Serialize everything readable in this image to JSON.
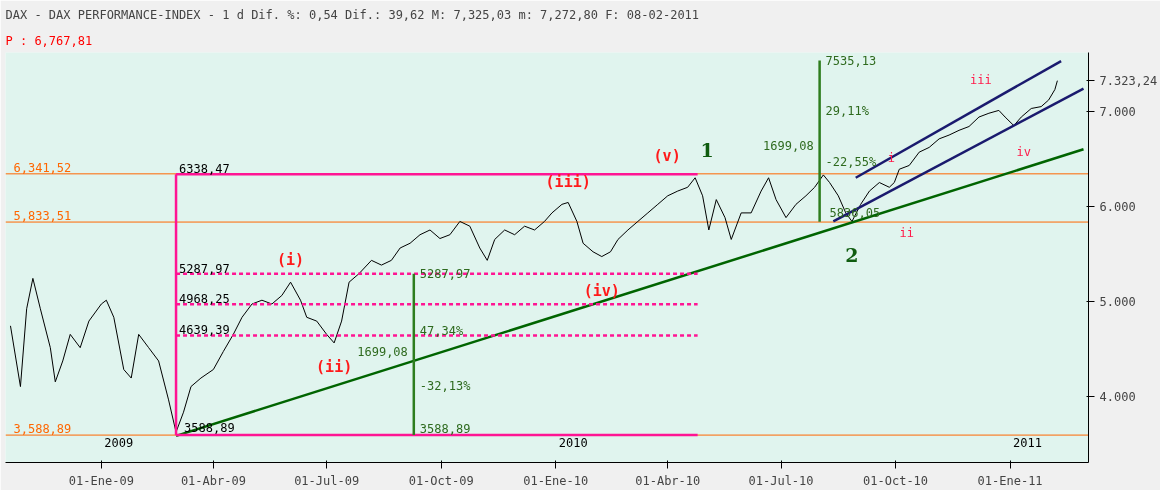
{
  "chart_data": {
    "type": "line",
    "title": "DAX - DAX PERFORMANCE-INDEX -  1 d Dif. %: 0,54 Dif.: 39,62 M: 7,325,03 m: 7,272,80 F: 08-02-2011",
    "subtitle": "P : 6,767,81",
    "xlim": [
      "2008-10-16",
      "2011-03-05"
    ],
    "ylim": [
      3300,
      7620
    ],
    "xticks": [
      {
        "value": "2009-01-01",
        "label": "01-Ene-09"
      },
      {
        "value": "2009-04-01",
        "label": "01-Abr-09"
      },
      {
        "value": "2009-07-01",
        "label": "01-Jul-09"
      },
      {
        "value": "2009-10-01",
        "label": "01-Oct-09"
      },
      {
        "value": "2010-01-01",
        "label": "01-Ene-10"
      },
      {
        "value": "2010-04-01",
        "label": "01-Abr-10"
      },
      {
        "value": "2010-07-01",
        "label": "01-Jul-10"
      },
      {
        "value": "2010-10-01",
        "label": "01-Oct-10"
      },
      {
        "value": "2011-01-01",
        "label": "01-Ene-11"
      }
    ],
    "yticks": [
      {
        "value": 4000,
        "label": "4.000"
      },
      {
        "value": 5000,
        "label": "5.000"
      },
      {
        "value": 6000,
        "label": "6.000"
      },
      {
        "value": 7000,
        "label": "7.000"
      },
      {
        "value": 7323.24,
        "label": "7.323,24"
      }
    ],
    "grid": false,
    "marker": "none",
    "series": [
      {
        "color": "#000000",
        "line_style": "solid",
        "x": [
          "2008-10-20",
          "2008-10-28",
          "2008-11-02",
          "2008-11-07",
          "2008-11-13",
          "2008-11-21",
          "2008-11-25",
          "2008-12-01",
          "2008-12-07",
          "2008-12-15",
          "2008-12-22",
          "2009-01-01",
          "2009-01-05",
          "2009-01-11",
          "2009-01-19",
          "2009-01-25",
          "2009-01-31",
          "2009-02-08",
          "2009-02-16",
          "2009-02-24",
          "2009-03-02",
          "2009-03-08",
          "2009-03-14",
          "2009-03-22",
          "2009-04-01",
          "2009-04-09",
          "2009-04-17",
          "2009-04-24",
          "2009-05-02",
          "2009-05-10",
          "2009-05-18",
          "2009-05-26",
          "2009-06-02",
          "2009-06-10",
          "2009-06-15",
          "2009-06-23",
          "2009-07-01",
          "2009-07-07",
          "2009-07-13",
          "2009-07-19",
          "2009-07-27",
          "2009-08-06",
          "2009-08-14",
          "2009-08-22",
          "2009-08-29",
          "2009-09-06",
          "2009-09-14",
          "2009-09-22",
          "2009-09-30",
          "2009-10-08",
          "2009-10-16",
          "2009-10-24",
          "2009-11-01",
          "2009-11-07",
          "2009-11-13",
          "2009-11-21",
          "2009-11-29",
          "2009-12-07",
          "2009-12-15",
          "2009-12-23",
          "2009-12-29",
          "2010-01-06",
          "2010-01-11",
          "2010-01-18",
          "2010-01-23",
          "2010-01-31",
          "2010-02-07",
          "2010-02-14",
          "2010-02-20",
          "2010-02-28",
          "2010-03-08",
          "2010-03-16",
          "2010-03-24",
          "2010-04-01",
          "2010-04-09",
          "2010-04-17",
          "2010-04-23",
          "2010-04-29",
          "2010-05-04",
          "2010-05-10",
          "2010-05-17",
          "2010-05-22",
          "2010-05-30",
          "2010-06-07",
          "2010-06-15",
          "2010-06-21",
          "2010-06-27",
          "2010-07-05",
          "2010-07-13",
          "2010-07-21",
          "2010-07-28",
          "2010-08-04",
          "2010-08-09",
          "2010-08-16",
          "2010-08-22",
          "2010-08-27",
          "2010-09-03",
          "2010-09-10",
          "2010-09-18",
          "2010-09-26",
          "2010-09-30",
          "2010-10-04",
          "2010-10-12",
          "2010-10-20",
          "2010-10-28",
          "2010-11-05",
          "2010-11-13",
          "2010-11-21",
          "2010-11-29",
          "2010-12-07",
          "2010-12-15",
          "2010-12-23",
          "2010-12-28",
          "2011-01-04",
          "2011-01-10",
          "2011-01-18",
          "2011-01-26",
          "2011-02-01",
          "2011-02-06",
          "2011-02-08"
        ],
        "values": [
          4740,
          4100,
          4920,
          5240,
          4920,
          4510,
          4150,
          4370,
          4650,
          4510,
          4790,
          4970,
          5010,
          4830,
          4280,
          4190,
          4650,
          4510,
          4370,
          3960,
          3620,
          3830,
          4100,
          4190,
          4280,
          4470,
          4650,
          4830,
          4970,
          5010,
          4970,
          5060,
          5200,
          5010,
          4830,
          4790,
          4650,
          4560,
          4790,
          5200,
          5290,
          5430,
          5380,
          5430,
          5560,
          5610,
          5700,
          5750,
          5660,
          5700,
          5840,
          5790,
          5560,
          5430,
          5650,
          5750,
          5700,
          5790,
          5750,
          5840,
          5930,
          6020,
          6040,
          5840,
          5610,
          5520,
          5470,
          5520,
          5650,
          5750,
          5840,
          5930,
          6020,
          6110,
          6160,
          6200,
          6300,
          6110,
          5750,
          6070,
          5880,
          5650,
          5930,
          5930,
          6160,
          6300,
          6070,
          5880,
          6020,
          6110,
          6200,
          6330,
          6250,
          6110,
          5930,
          5840,
          6020,
          6160,
          6250,
          6200,
          6250,
          6390,
          6430,
          6570,
          6620,
          6710,
          6750,
          6800,
          6840,
          6940,
          6980,
          7010,
          6940,
          6850,
          6940,
          7030,
          7050,
          7120,
          7230,
          7323.24
        ]
      },
      {
        "type": "line",
        "color": "#006400",
        "line_style": "solid",
        "x": [
          "2009-03-02",
          "2011-03-01"
        ],
        "values": [
          3580,
          6600
        ]
      },
      {
        "type": "line",
        "color": "#1a1a6e",
        "line_style": "solid",
        "x": [
          "2010-08-30",
          "2011-02-11"
        ],
        "values": [
          6300,
          7530
        ]
      },
      {
        "type": "line",
        "color": "#1a1a6e",
        "line_style": "solid",
        "x": [
          "2010-08-12",
          "2011-03-01"
        ],
        "values": [
          5840,
          7240
        ]
      },
      {
        "type": "line",
        "color": "#ff1493",
        "line_style": "solid",
        "x": [
          "2009-03-02",
          "2009-03-02"
        ],
        "values": [
          3588.89,
          6338.47
        ]
      },
      {
        "type": "line",
        "color": "#ff1493",
        "line_style": "solid",
        "x": [
          "2009-03-02",
          "2010-04-25"
        ],
        "values": [
          6338.47,
          6338.47
        ]
      },
      {
        "type": "line",
        "color": "#ff1493",
        "line_style": "solid",
        "x": [
          "2009-03-02",
          "2010-04-25"
        ],
        "values": [
          3588.89,
          3588.89
        ]
      },
      {
        "type": "line",
        "color": "#ff1493",
        "line_style": "dashed",
        "x": [
          "2009-03-02",
          "2010-04-25"
        ],
        "values": [
          5287.97,
          5287.97
        ]
      },
      {
        "type": "line",
        "color": "#ff1493",
        "line_style": "dashed",
        "x": [
          "2009-03-02",
          "2010-04-25"
        ],
        "values": [
          4968.25,
          4968.25
        ]
      },
      {
        "type": "line",
        "color": "#ff1493",
        "line_style": "dashed",
        "x": [
          "2009-03-02",
          "2010-04-25"
        ],
        "values": [
          4639.39,
          4639.39
        ]
      },
      {
        "type": "line",
        "color": "#2e7d1e",
        "line_style": "solid",
        "x": [
          "2009-09-09",
          "2009-09-09"
        ],
        "values": [
          3588.89,
          5287.97
        ]
      },
      {
        "type": "line",
        "color": "#2e7d1e",
        "line_style": "solid",
        "x": [
          "2010-08-01",
          "2010-08-01"
        ],
        "values": [
          5836.05,
          7535.13
        ]
      }
    ],
    "ref_lines": [
      {
        "axis": "y",
        "value": 6341.52,
        "label": "6,341,52",
        "color": "#ff6600"
      },
      {
        "axis": "y",
        "value": 5833.51,
        "label": "5,833,51",
        "color": "#ff6600"
      },
      {
        "axis": "y",
        "value": 3588.89,
        "label": "3,588,89",
        "color": "#ff6600"
      }
    ],
    "annotations": [
      {
        "text": "(i)",
        "x": "2009-06-02",
        "y": 5200
      },
      {
        "text": "(ii)",
        "x": "2009-07-07",
        "y": 4560
      },
      {
        "text": "(iii)",
        "x": "2010-01-11",
        "y": 6040
      },
      {
        "text": "(iv)",
        "x": "2010-02-07",
        "y": 5470
      },
      {
        "text": "(v)",
        "x": "2010-04-23",
        "y": 6300
      },
      {
        "text": "1",
        "x": "2010-04-23",
        "y": 6300
      },
      {
        "text": "2",
        "x": "2010-08-27",
        "y": 5840
      },
      {
        "text": "i",
        "x": "2010-09-18",
        "y": 6250
      },
      {
        "text": "ii",
        "x": "2010-10-10",
        "y": 5833.51
      },
      {
        "text": "iii",
        "x": "2010-12-23",
        "y": 7010
      },
      {
        "text": "iv",
        "x": "2011-01-04",
        "y": 6850
      },
      {
        "text": "6338,47",
        "x": "2009-03-02",
        "y": 6338.47
      },
      {
        "text": "5287,97",
        "x": "2009-03-02",
        "y": 5287.97
      },
      {
        "text": "4968,25",
        "x": "2009-03-02",
        "y": 4968.25
      },
      {
        "text": "4639,39",
        "x": "2009-03-02",
        "y": 4639.39
      },
      {
        "text": "3588,89",
        "x": "2009-03-02",
        "y": 3588.89
      },
      {
        "text": "5287,97",
        "x": "2009-09-09",
        "y": 5287.97
      },
      {
        "text": "47,34%",
        "x": "2009-09-09",
        "y": 4690
      },
      {
        "text": "1699,08",
        "x": "2009-09-09",
        "y": 4470
      },
      {
        "text": "-32,13%",
        "x": "2009-09-09",
        "y": 4110
      },
      {
        "text": "3588,89",
        "x": "2009-09-09",
        "y": 3588.89
      },
      {
        "text": "7535,13",
        "x": "2010-08-01",
        "y": 7535.13
      },
      {
        "text": "29,11%",
        "x": "2010-08-01",
        "y": 7000
      },
      {
        "text": "1699,08",
        "x": "2010-08-01",
        "y": 6640
      },
      {
        "text": "-22,55%",
        "x": "2010-08-01",
        "y": 6370
      },
      {
        "text": "5836,05",
        "x": "2010-08-01",
        "y": 5836.05
      },
      {
        "text": "2009",
        "x": "2009-01-01",
        "y": 3588.89
      },
      {
        "text": "2010",
        "x": "2010-01-01",
        "y": 3588.89
      },
      {
        "text": "2011",
        "x": "2011-01-01",
        "y": 3588.89
      }
    ]
  }
}
